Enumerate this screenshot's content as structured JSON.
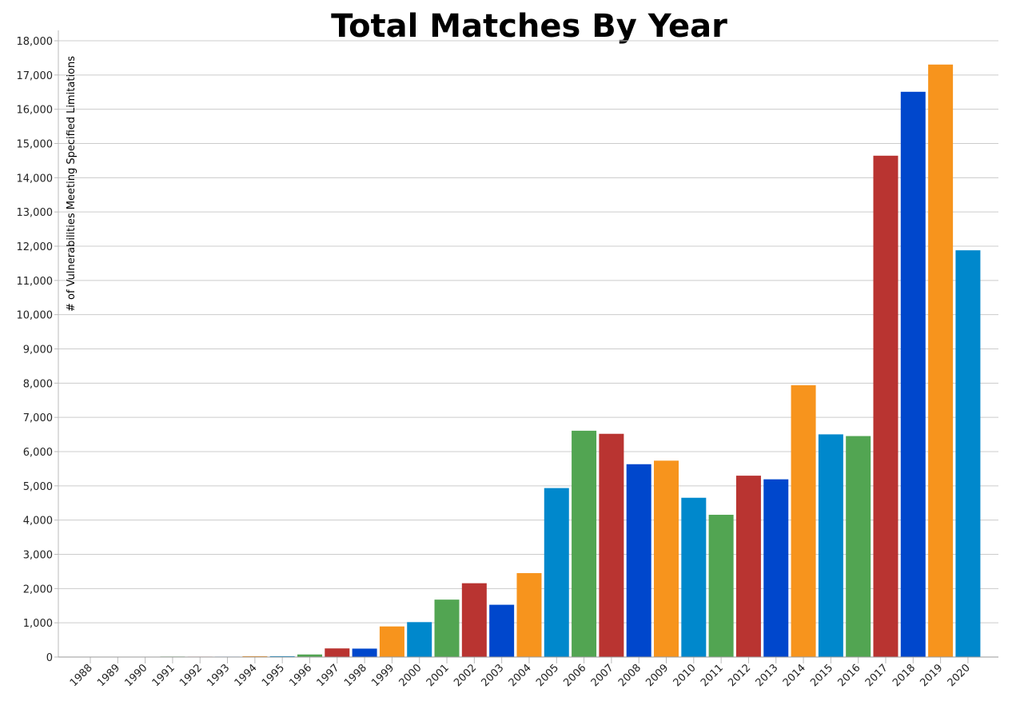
{
  "chart_data": {
    "type": "bar",
    "title": "Total Matches By Year",
    "xlabel": "",
    "ylabel": "# of Vulnerabilities Meeting Specified Limitations",
    "ylim": [
      0,
      18000
    ],
    "yticks": [
      "0",
      "1,000",
      "2,000",
      "3,000",
      "4,000",
      "5,000",
      "6,000",
      "7,000",
      "8,000",
      "9,000",
      "10,000",
      "11,000",
      "12,000",
      "13,000",
      "14,000",
      "15,000",
      "16,000",
      "17,000",
      "18,000"
    ],
    "grid": true,
    "categories": [
      "1988",
      "1989",
      "1990",
      "1991",
      "1992",
      "1993",
      "1994",
      "1995",
      "1996",
      "1997",
      "1998",
      "1999",
      "2000",
      "2001",
      "2002",
      "2003",
      "2004",
      "2005",
      "2006",
      "2007",
      "2008",
      "2009",
      "2010",
      "2011",
      "2012",
      "2013",
      "2014",
      "2015",
      "2016",
      "2017",
      "2018",
      "2019",
      "2020"
    ],
    "values": [
      2,
      3,
      11,
      15,
      13,
      13,
      25,
      25,
      75,
      252,
      246,
      894,
      1020,
      1677,
      2156,
      1527,
      2451,
      4935,
      6610,
      6520,
      5632,
      5736,
      4652,
      4155,
      5297,
      5191,
      7939,
      6504,
      6454,
      14643,
      16510,
      17305,
      11880
    ],
    "colors": [
      "#0047cc",
      "#f7941d",
      "#0088cc",
      "#52a552",
      "#b93431"
    ]
  }
}
